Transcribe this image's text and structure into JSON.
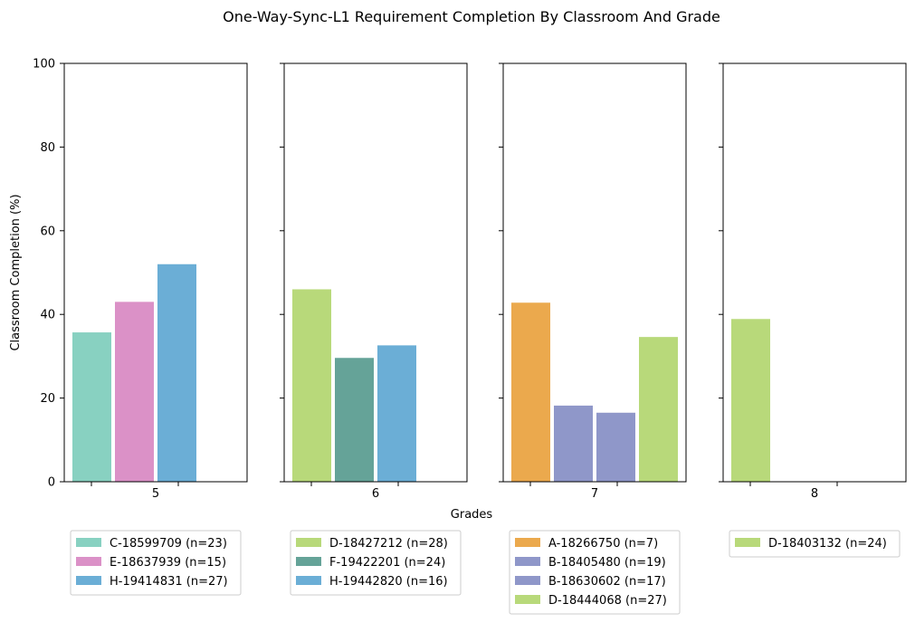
{
  "chart_data": {
    "type": "bar",
    "title": "One-Way-Sync-L1 Requirement Completion By Classroom And Grade",
    "xlabel": "Grades",
    "ylabel": "Classroom Completion (%)",
    "ylim": [
      0,
      100
    ],
    "yticks": [
      "0",
      "20",
      "40",
      "60",
      "80",
      "100"
    ],
    "grid": false,
    "legend_placement": "below each panel",
    "panels": [
      {
        "category": "5",
        "series": [
          {
            "name": "C-18599709 (n=23)",
            "value": 35.7,
            "color": "#88d1c1"
          },
          {
            "name": "E-18637939 (n=15)",
            "value": 43.0,
            "color": "#db91c7"
          },
          {
            "name": "H-19414831 (n=27)",
            "value": 52.0,
            "color": "#6baed6"
          }
        ]
      },
      {
        "category": "6",
        "series": [
          {
            "name": "D-18427212 (n=28)",
            "value": 46.0,
            "color": "#b8d97a"
          },
          {
            "name": "F-19422201 (n=24)",
            "value": 29.6,
            "color": "#65a398"
          },
          {
            "name": "H-19442820 (n=16)",
            "value": 32.6,
            "color": "#6baed6"
          }
        ]
      },
      {
        "category": "7",
        "series": [
          {
            "name": "A-18266750 (n=7)",
            "value": 42.8,
            "color": "#eba94d"
          },
          {
            "name": "B-18405480 (n=19)",
            "value": 18.2,
            "color": "#8f97c9"
          },
          {
            "name": "B-18630602 (n=17)",
            "value": 16.5,
            "color": "#8f97c9"
          },
          {
            "name": "D-18444068 (n=27)",
            "value": 34.6,
            "color": "#b8d97a"
          }
        ]
      },
      {
        "category": "8",
        "series": [
          {
            "name": "D-18403132 (n=24)",
            "value": 38.9,
            "color": "#b8d97a"
          }
        ]
      }
    ]
  }
}
